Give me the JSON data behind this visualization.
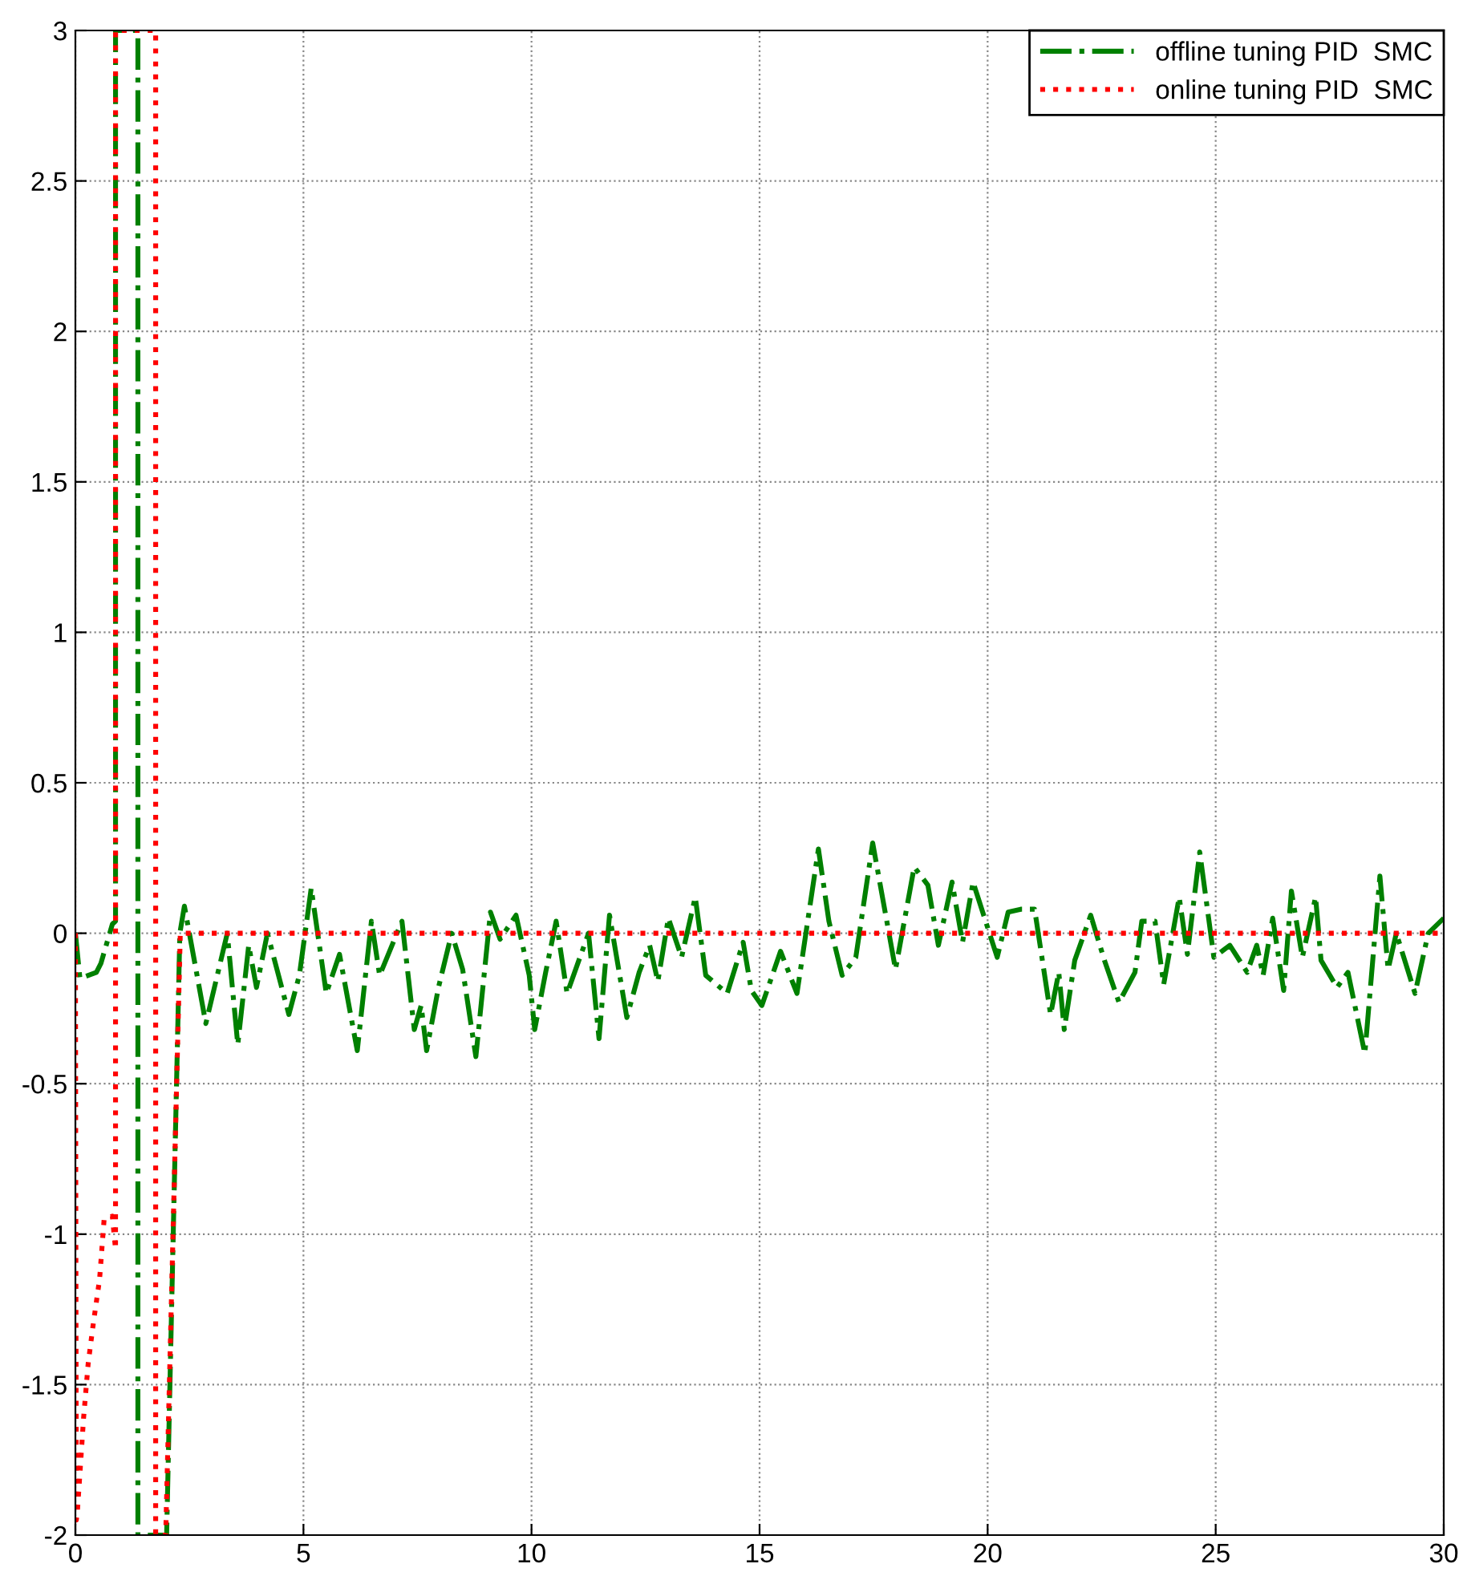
{
  "chart_data": {
    "type": "line",
    "xlim": [
      0,
      30
    ],
    "xticks": [
      0,
      5,
      10,
      15,
      20,
      25,
      30
    ],
    "ylim": [
      -2,
      3
    ],
    "yticks": [
      -2,
      -1.5,
      -1,
      -0.5,
      0,
      0.5,
      1,
      1.5,
      2,
      2.5,
      3
    ],
    "grid": true,
    "legend": "top right",
    "marker": "none",
    "series": [
      {
        "name": "offline tuning PID  SMC",
        "color": "#008000",
        "line_style": "dashdot",
        "x": [
          0,
          0.1,
          0.46,
          0.56,
          0.81,
          0.88,
          0.88,
          1.37,
          1.37,
          2.0,
          2.29,
          2.39,
          2.86,
          3.33,
          3.56,
          3.8,
          3.97,
          4.21,
          4.68,
          4.91,
          5.17,
          5.5,
          5.79,
          6.18,
          6.49,
          6.67,
          7.16,
          7.43,
          7.58,
          7.7,
          7.96,
          8.25,
          8.49,
          8.78,
          9.1,
          9.31,
          9.66,
          9.95,
          10.07,
          10.31,
          10.54,
          10.78,
          11.25,
          11.48,
          11.71,
          12.09,
          12.36,
          12.59,
          12.77,
          13.0,
          13.29,
          13.59,
          13.82,
          14.29,
          14.64,
          14.82,
          15.05,
          15.46,
          15.82,
          16.29,
          16.52,
          16.81,
          17.11,
          17.48,
          17.98,
          18.39,
          18.69,
          18.92,
          19.22,
          19.45,
          19.68,
          20.21,
          20.45,
          20.74,
          21.03,
          21.38,
          21.56,
          21.68,
          21.91,
          22.26,
          22.56,
          22.88,
          23.23,
          23.38,
          23.67,
          23.86,
          24.2,
          24.38,
          24.65,
          24.96,
          25.31,
          25.69,
          25.9,
          26.04,
          26.25,
          26.49,
          26.66,
          26.9,
          27.19,
          27.31,
          27.66,
          27.9,
          28.27,
          28.6,
          28.78,
          28.96,
          29.37,
          29.66,
          30
        ],
        "values": [
          0,
          -0.15,
          -0.13,
          -0.1,
          0.03,
          0.04,
          3,
          3,
          -2,
          -2,
          0,
          0.09,
          -0.3,
          0,
          -0.37,
          -0.04,
          -0.18,
          0,
          -0.27,
          -0.14,
          0.15,
          -0.2,
          -0.07,
          -0.39,
          0.04,
          -0.14,
          0.04,
          -0.32,
          -0.24,
          -0.39,
          -0.18,
          0,
          -0.12,
          -0.41,
          0.07,
          -0.02,
          0.06,
          -0.14,
          -0.32,
          -0.13,
          0.04,
          -0.2,
          0,
          -0.35,
          0.06,
          -0.28,
          -0.13,
          -0.04,
          -0.16,
          0.05,
          -0.08,
          0.12,
          -0.14,
          -0.2,
          -0.03,
          -0.19,
          -0.24,
          -0.06,
          -0.2,
          0.28,
          0.04,
          -0.14,
          -0.08,
          0.3,
          -0.12,
          0.22,
          0.16,
          -0.04,
          0.17,
          -0.03,
          0.17,
          -0.08,
          0.07,
          0.08,
          0.08,
          -0.27,
          -0.13,
          -0.32,
          -0.09,
          0.06,
          -0.09,
          -0.23,
          -0.13,
          0.04,
          0.04,
          -0.17,
          0.12,
          -0.07,
          0.27,
          -0.08,
          -0.04,
          -0.13,
          -0.04,
          -0.14,
          0.05,
          -0.19,
          0.14,
          -0.08,
          0.12,
          -0.09,
          -0.18,
          -0.13,
          -0.4,
          0.19,
          -0.12,
          0,
          -0.2,
          0,
          0.05
        ]
      },
      {
        "name": "online tuning PID  SMC",
        "color": "#ff0000",
        "line_style": "dotted",
        "x": [
          0,
          0.02,
          0.04,
          0.18,
          0.28,
          0.39,
          0.53,
          0.63,
          0.81,
          0.88,
          0.88,
          1.76,
          1.76,
          1.98,
          2.3,
          30
        ],
        "values": [
          0,
          -1.95,
          -1.93,
          -1.61,
          -1.43,
          -1.3,
          -1.15,
          -0.95,
          -0.94,
          -1.05,
          3,
          3,
          -2,
          -2,
          0,
          0
        ]
      }
    ]
  }
}
